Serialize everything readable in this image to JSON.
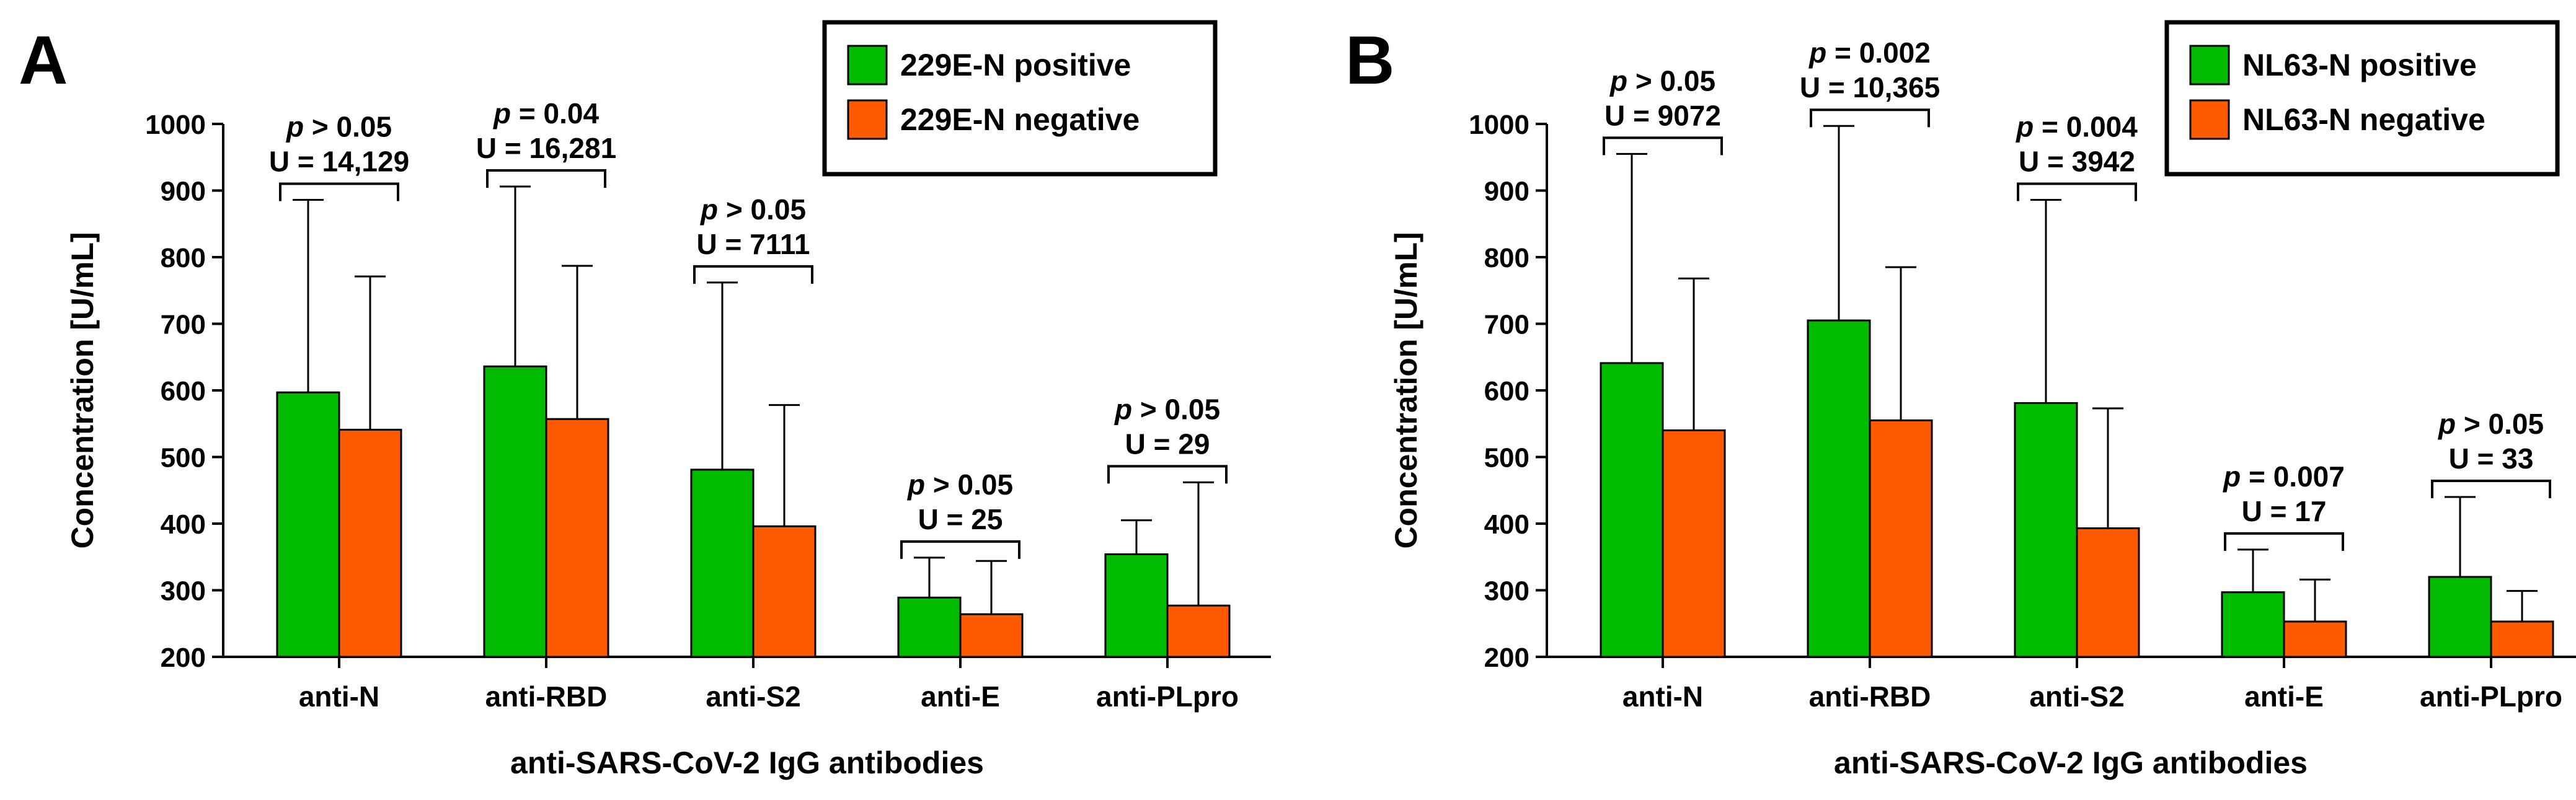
{
  "chart_data": [
    {
      "type": "bar",
      "panel": "A",
      "categories": [
        "anti-N",
        "anti-RBD",
        "anti-S2",
        "anti-E",
        "anti-PLpro"
      ],
      "series": [
        {
          "name": "229E-N positive",
          "color": "#00bb00",
          "values": [
            597,
            636,
            481,
            289,
            354
          ],
          "error_upper": [
            886,
            906,
            762,
            349,
            405
          ]
        },
        {
          "name": "229E-N negative",
          "color": "#ff5a00",
          "values": [
            541,
            557,
            396,
            264,
            277
          ],
          "error_upper": [
            771,
            787,
            578,
            344,
            462
          ]
        }
      ],
      "comparisons": [
        {
          "p_prefix": "p",
          "p_rest": " > 0.05",
          "u": "U = 14,129"
        },
        {
          "p_prefix": "p",
          "p_rest": " = 0.04",
          "u": "U = 16,281"
        },
        {
          "p_prefix": "p",
          "p_rest": " > 0.05",
          "u": "U = 7111"
        },
        {
          "p_prefix": "p",
          "p_rest": " > 0.05",
          "u": "U = 25"
        },
        {
          "p_prefix": "p",
          "p_rest": " > 0.05",
          "u": "U = 29"
        }
      ],
      "ylabel": "Concentration [U/mL]",
      "xlabel": "anti-SARS-CoV-2 IgG antibodies",
      "ylim": [
        200,
        1000
      ],
      "yticks": [
        200,
        300,
        400,
        500,
        600,
        700,
        800,
        900,
        1000
      ],
      "legend_position": "top-right"
    },
    {
      "type": "bar",
      "panel": "B",
      "categories": [
        "anti-N",
        "anti-RBD",
        "anti-S2",
        "anti-E",
        "anti-PLpro"
      ],
      "series": [
        {
          "name": "NL63-N positive",
          "color": "#00bb00",
          "values": [
            641,
            705,
            581,
            297,
            320
          ],
          "error_upper": [
            955,
            997,
            886,
            361,
            440
          ]
        },
        {
          "name": "NL63-N negative",
          "color": "#ff5a00",
          "values": [
            540,
            555,
            393,
            253,
            253
          ],
          "error_upper": [
            768,
            785,
            573,
            316,
            299
          ]
        }
      ],
      "comparisons": [
        {
          "p_prefix": "p",
          "p_rest": " > 0.05",
          "u": "U = 9072"
        },
        {
          "p_prefix": "p",
          "p_rest": " = 0.002",
          "u": "U = 10,365"
        },
        {
          "p_prefix": "p",
          "p_rest": " = 0.004",
          "u": "U = 3942"
        },
        {
          "p_prefix": "p",
          "p_rest": " = 0.007",
          "u": "U = 17"
        },
        {
          "p_prefix": "p",
          "p_rest": " > 0.05",
          "u": "U = 33"
        }
      ],
      "ylabel": "Concentration [U/mL]",
      "xlabel": "anti-SARS-CoV-2 IgG antibodies",
      "ylim": [
        200,
        1000
      ],
      "yticks": [
        200,
        300,
        400,
        500,
        600,
        700,
        800,
        900,
        1000
      ],
      "legend_position": "top-right"
    }
  ]
}
